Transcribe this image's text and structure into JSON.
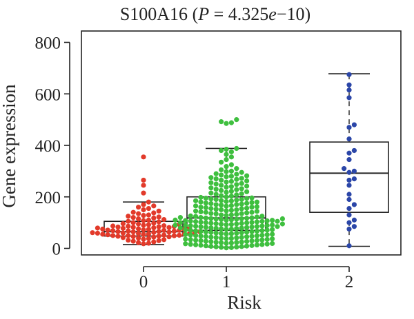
{
  "chart_data": {
    "type": "boxplot",
    "title_gene": "S100A16",
    "title_p_label": "P",
    "title_p_value": "4.325",
    "title_p_exp": "e",
    "title_p_pow": "−10",
    "xlabel": "Risk",
    "ylabel": "Gene expression",
    "ylim": [
      -35,
      815
    ],
    "yticks": [
      0,
      200,
      400,
      600,
      800
    ],
    "categories": [
      "0",
      "1",
      "2"
    ],
    "boxes": [
      {
        "category": "0",
        "color": "#e23a2a",
        "whisker_low": 15,
        "q1": 48,
        "median": 65,
        "q3": 105,
        "whisker_high": 180,
        "points": [
          355,
          265,
          245,
          215,
          180,
          170,
          165,
          160,
          155,
          150,
          145,
          140,
          138,
          135,
          130,
          128,
          125,
          122,
          120,
          118,
          115,
          112,
          110,
          108,
          105,
          103,
          100,
          98,
          96,
          95,
          93,
          92,
          90,
          88,
          87,
          86,
          85,
          84,
          83,
          82,
          81,
          80,
          79,
          78,
          77,
          76,
          75,
          74,
          73,
          72,
          71,
          70,
          70,
          69,
          68,
          67,
          66,
          65,
          65,
          64,
          63,
          62,
          61,
          60,
          60,
          59,
          58,
          57,
          56,
          55,
          55,
          54,
          53,
          52,
          51,
          50,
          50,
          49,
          48,
          47,
          46,
          45,
          44,
          42,
          40,
          38,
          36,
          34,
          32,
          30,
          28,
          25,
          22,
          20,
          18
        ]
      },
      {
        "category": "1",
        "color": "#3fbf3f",
        "whisker_low": 5,
        "q1": 70,
        "median": 118,
        "q3": 200,
        "whisker_high": 388,
        "points": [
          500,
          492,
          488,
          485,
          388,
          385,
          380,
          375,
          365,
          355,
          345,
          335,
          325,
          318,
          310,
          305,
          300,
          298,
          295,
          290,
          288,
          285,
          282,
          280,
          278,
          275,
          272,
          270,
          268,
          265,
          262,
          260,
          258,
          255,
          252,
          250,
          248,
          245,
          242,
          240,
          238,
          235,
          232,
          230,
          228,
          225,
          222,
          220,
          218,
          215,
          212,
          210,
          208,
          205,
          203,
          200,
          198,
          196,
          194,
          192,
          190,
          188,
          186,
          184,
          182,
          180,
          178,
          176,
          174,
          172,
          170,
          168,
          166,
          164,
          162,
          160,
          158,
          156,
          154,
          152,
          150,
          148,
          146,
          144,
          142,
          140,
          138,
          136,
          134,
          132,
          130,
          128,
          126,
          124,
          122,
          120,
          119,
          118,
          117,
          116,
          115,
          114,
          113,
          112,
          111,
          110,
          109,
          108,
          107,
          106,
          105,
          104,
          103,
          102,
          101,
          100,
          99,
          98,
          97,
          96,
          95,
          94,
          93,
          92,
          91,
          90,
          89,
          88,
          87,
          86,
          85,
          84,
          83,
          82,
          81,
          80,
          79,
          78,
          77,
          76,
          75,
          74,
          73,
          72,
          71,
          70,
          69,
          68,
          67,
          66,
          65,
          64,
          63,
          62,
          61,
          60,
          59,
          58,
          57,
          56,
          55,
          54,
          53,
          52,
          51,
          50,
          49,
          48,
          47,
          46,
          45,
          44,
          43,
          42,
          41,
          40,
          39,
          38,
          37,
          36,
          35,
          34,
          33,
          32,
          31,
          30,
          29,
          28,
          27,
          26,
          25,
          24,
          23,
          22,
          21,
          20,
          19,
          18,
          17,
          16,
          15,
          14,
          13,
          12,
          11,
          10,
          9,
          8,
          7,
          6,
          5,
          4,
          3,
          2,
          80,
          85,
          90,
          95,
          100,
          105,
          110,
          115,
          120,
          125,
          130,
          135,
          140,
          145,
          150,
          155,
          160,
          165,
          170,
          175,
          180,
          185,
          190,
          195
        ]
      },
      {
        "category": "2",
        "color": "#2b46a8",
        "whisker_low": 8,
        "q1": 140,
        "median": 292,
        "q3": 413,
        "whisker_high": 678,
        "points": [
          675,
          635,
          615,
          585,
          480,
          470,
          425,
          380,
          370,
          345,
          310,
          300,
          295,
          270,
          265,
          245,
          210,
          190,
          170,
          155,
          130,
          110,
          100,
          85,
          75,
          10
        ]
      }
    ]
  }
}
